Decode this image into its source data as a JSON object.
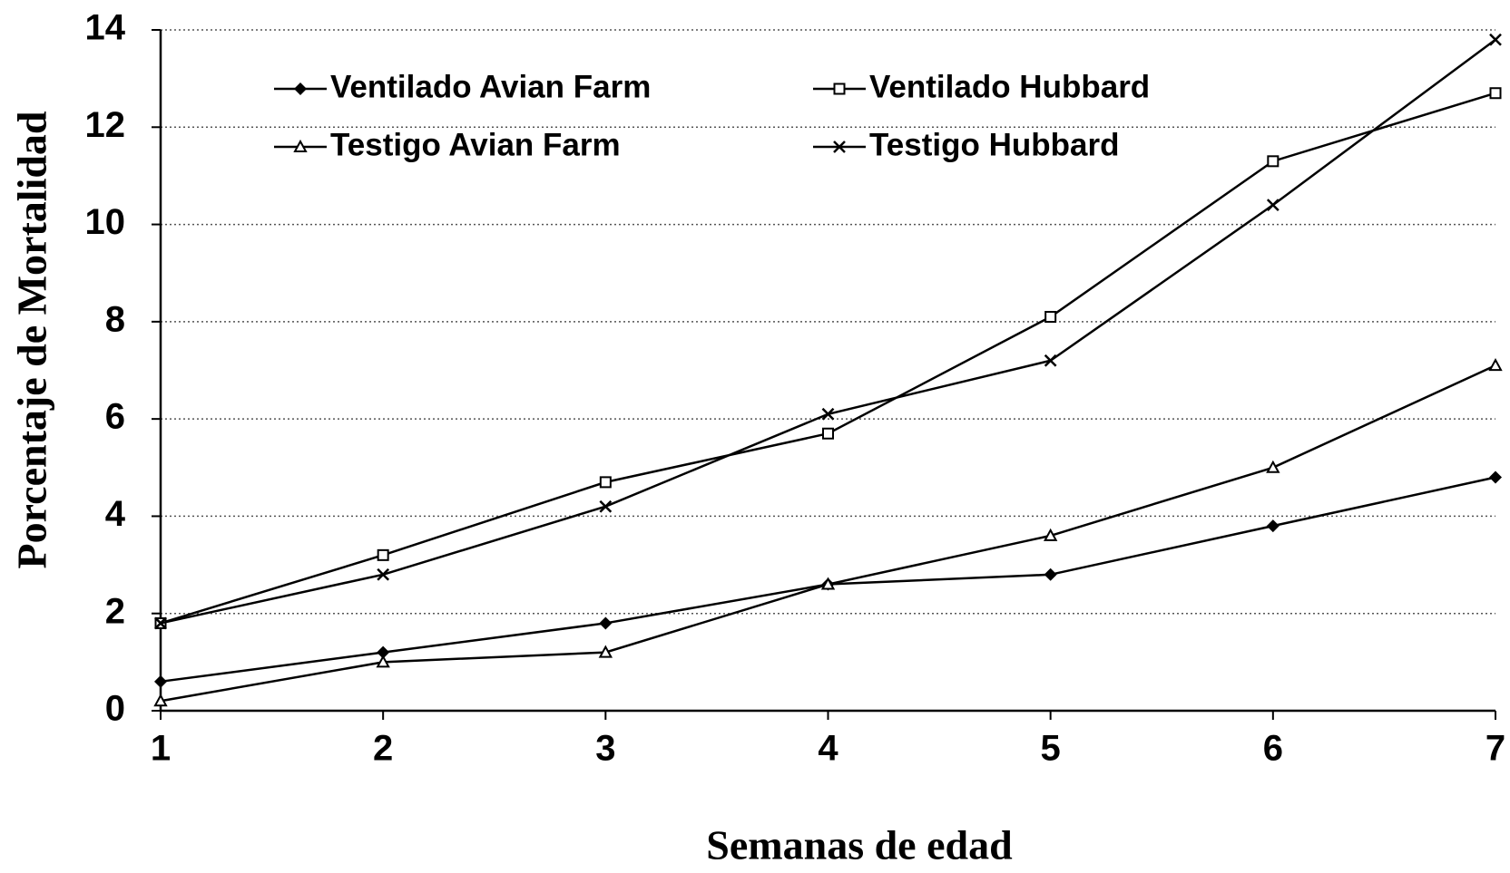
{
  "chart_data": {
    "type": "line",
    "x_label": "Semanas de edad",
    "y_label": "Porcentaje de Mortalidad",
    "x": [
      1,
      2,
      3,
      4,
      5,
      6,
      7
    ],
    "xlim": [
      1,
      7
    ],
    "xticks": [
      1,
      2,
      3,
      4,
      5,
      6,
      7
    ],
    "ylim": [
      0,
      14
    ],
    "yticks": [
      0,
      2,
      4,
      6,
      8,
      10,
      12,
      14
    ],
    "grid": true,
    "legend": "upper left",
    "series": [
      {
        "name": "Ventilado Avian Farm",
        "color": "#000000",
        "marker": "diamond",
        "values": [
          0.6,
          1.2,
          1.8,
          2.6,
          2.8,
          3.8,
          4.8
        ]
      },
      {
        "name": "Ventilado Hubbard",
        "color": "#000000",
        "marker": "square",
        "values": [
          1.8,
          3.2,
          4.7,
          5.7,
          8.1,
          11.3,
          12.7
        ]
      },
      {
        "name": "Testigo Avian Farm",
        "color": "#000000",
        "marker": "triangle",
        "values": [
          0.2,
          1.0,
          1.2,
          2.6,
          3.6,
          5.0,
          7.1
        ]
      },
      {
        "name": "Testigo Hubbard",
        "color": "#000000",
        "marker": "x",
        "values": [
          1.8,
          2.8,
          4.2,
          6.1,
          7.2,
          10.4,
          13.8
        ]
      }
    ]
  }
}
